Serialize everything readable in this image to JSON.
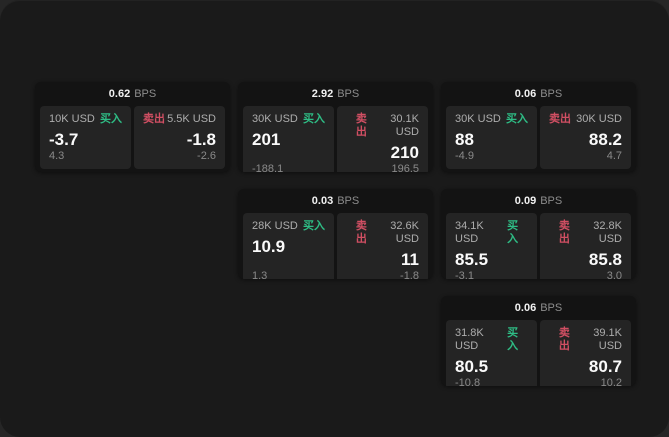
{
  "labels": {
    "buy": "买入",
    "sell": "卖出",
    "bps": "BPS"
  },
  "colors": {
    "buy_green": "#2ebd85",
    "sell_red": "#d14f63",
    "panel_bg": "#1a1a1a",
    "card_bg": "#131313",
    "tile_bg": "#242424"
  },
  "cards": [
    {
      "bps": "0.62",
      "buy": {
        "size": "10K USD",
        "value": "-3.7",
        "sub": "4.3"
      },
      "sell": {
        "size": "5.5K USD",
        "value": "-1.8",
        "sub": "-2.6"
      }
    },
    {
      "bps": "2.92",
      "buy": {
        "size": "30K USD",
        "value": "201",
        "sub": "-188.1"
      },
      "sell": {
        "size": "30.1K USD",
        "value": "210",
        "sub": "196.5"
      }
    },
    {
      "bps": "0.06",
      "buy": {
        "size": "30K USD",
        "value": "88",
        "sub": "-4.9"
      },
      "sell": {
        "size": "30K USD",
        "value": "88.2",
        "sub": "4.7"
      }
    },
    {
      "bps": "0.03",
      "buy": {
        "size": "28K USD",
        "value": "10.9",
        "sub": "1.3"
      },
      "sell": {
        "size": "32.6K USD",
        "value": "11",
        "sub": "-1.8"
      }
    },
    {
      "bps": "0.09",
      "buy": {
        "size": "34.1K USD",
        "value": "85.5",
        "sub": "-3.1"
      },
      "sell": {
        "size": "32.8K USD",
        "value": "85.8",
        "sub": "3.0"
      }
    },
    {
      "bps": "0.06",
      "buy": {
        "size": "31.8K USD",
        "value": "80.5",
        "sub": "-10.8"
      },
      "sell": {
        "size": "39.1K USD",
        "value": "80.7",
        "sub": "10.2"
      }
    }
  ]
}
